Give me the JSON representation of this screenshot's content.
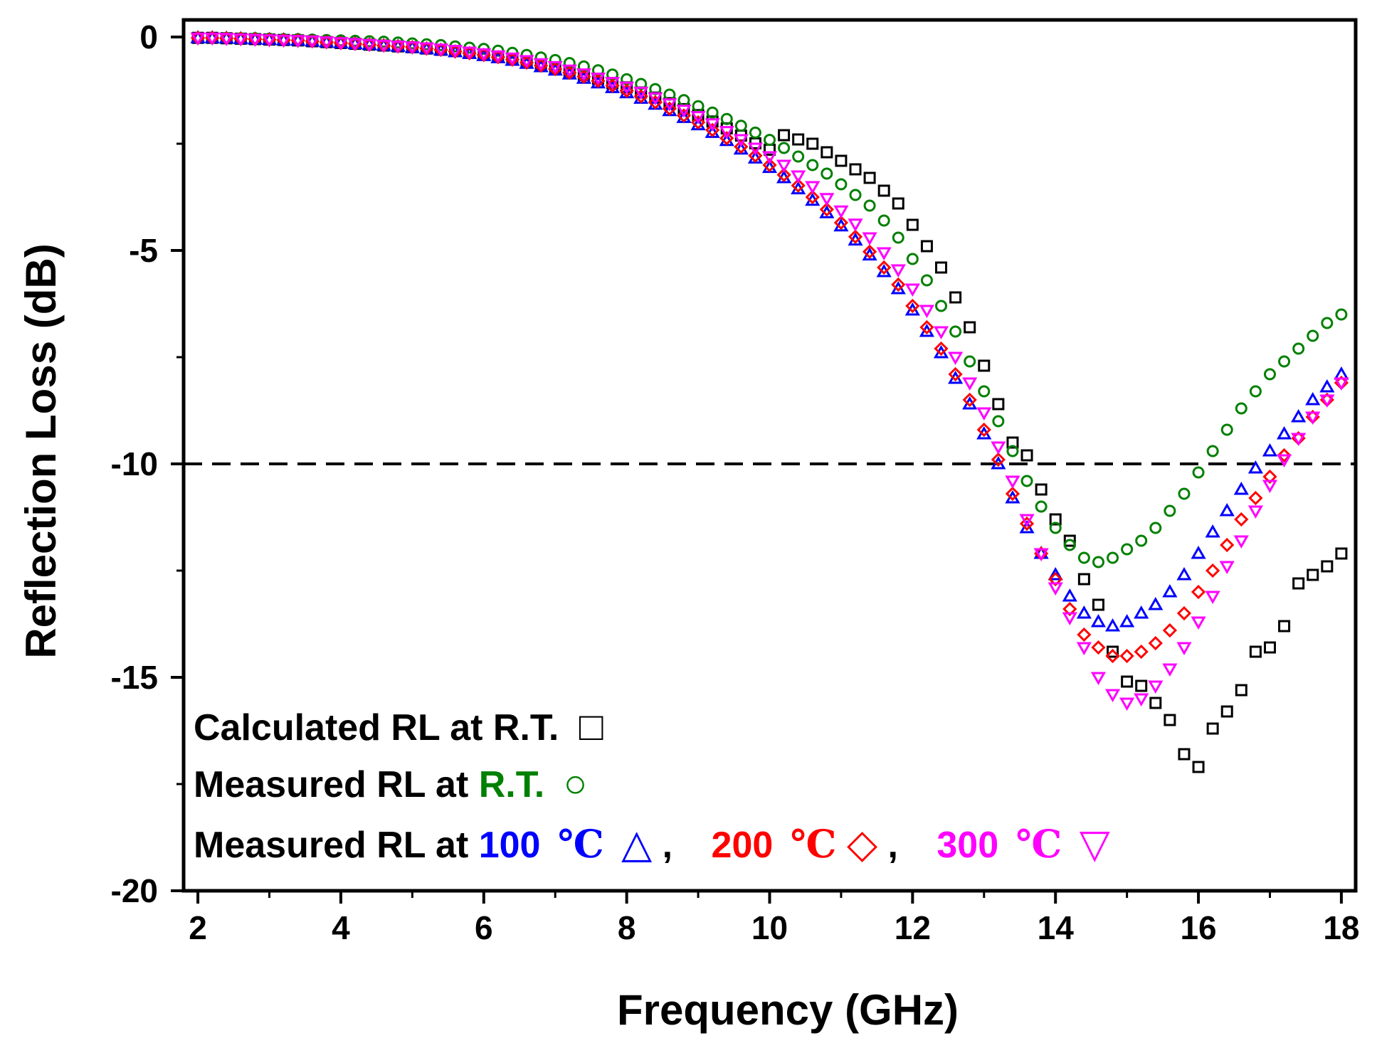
{
  "chart_data": {
    "type": "scatter",
    "title": "",
    "xlabel": "Frequency (GHz)",
    "ylabel": "Reflection Loss (dB)",
    "xlim": [
      1.8,
      18.2
    ],
    "ylim": [
      -20,
      0.4
    ],
    "xticks": [
      "2",
      "4",
      "6",
      "8",
      "10",
      "12",
      "14",
      "16",
      "18"
    ],
    "yticks": [
      "0",
      "-5",
      "-10",
      "-15",
      "-20"
    ],
    "reference_line": {
      "y": -10,
      "style": "dashed"
    },
    "x": [
      2.0,
      2.2,
      2.4,
      2.6,
      2.8,
      3.0,
      3.2,
      3.4,
      3.6,
      3.8,
      4.0,
      4.2,
      4.4,
      4.6,
      4.8,
      5.0,
      5.2,
      5.4,
      5.6,
      5.8,
      6.0,
      6.2,
      6.4,
      6.6,
      6.8,
      7.0,
      7.2,
      7.4,
      7.6,
      7.8,
      8.0,
      8.2,
      8.4,
      8.6,
      8.8,
      9.0,
      9.2,
      9.4,
      9.6,
      9.8,
      10.0,
      10.2,
      10.4,
      10.6,
      10.8,
      11.0,
      11.2,
      11.4,
      11.6,
      11.8,
      12.0,
      12.2,
      12.4,
      12.6,
      12.8,
      13.0,
      13.2,
      13.4,
      13.6,
      13.8,
      14.0,
      14.2,
      14.4,
      14.6,
      14.8,
      15.0,
      15.2,
      15.4,
      15.6,
      15.8,
      16.0,
      16.2,
      16.4,
      16.6,
      16.8,
      17.0,
      17.2,
      17.4,
      17.6,
      17.8,
      18.0
    ],
    "series": [
      {
        "name": "Calculated RL at R.T.",
        "marker": "square",
        "color": "#000000",
        "values": [
          -0.02,
          -0.02,
          -0.03,
          -0.04,
          -0.05,
          -0.06,
          -0.07,
          -0.08,
          -0.1,
          -0.12,
          -0.14,
          -0.16,
          -0.18,
          -0.2,
          -0.22,
          -0.24,
          -0.27,
          -0.3,
          -0.33,
          -0.37,
          -0.41,
          -0.46,
          -0.52,
          -0.58,
          -0.65,
          -0.72,
          -0.8,
          -0.89,
          -0.98,
          -1.08,
          -1.18,
          -1.3,
          -1.42,
          -1.55,
          -1.69,
          -1.83,
          -1.98,
          -2.14,
          -2.31,
          -2.49,
          -2.64,
          -2.3,
          -2.4,
          -2.5,
          -2.7,
          -2.9,
          -3.1,
          -3.3,
          -3.6,
          -3.9,
          -4.4,
          -4.9,
          -5.4,
          -6.1,
          -6.8,
          -7.7,
          -8.6,
          -9.5,
          -9.8,
          -10.6,
          -11.3,
          -11.8,
          -12.7,
          -13.3,
          -14.4,
          -15.1,
          -15.2,
          -15.6,
          -16.0,
          -16.8,
          -17.1,
          -16.2,
          -15.8,
          -15.3,
          -14.4,
          -14.3,
          -13.8,
          -12.8,
          -12.6,
          -12.4,
          -12.1
        ]
      },
      {
        "name": "Measured RL at R.T.",
        "marker": "circle",
        "color": "#008000",
        "values": [
          -0.02,
          -0.02,
          -0.02,
          -0.03,
          -0.03,
          -0.04,
          -0.05,
          -0.05,
          -0.06,
          -0.07,
          -0.08,
          -0.09,
          -0.1,
          -0.11,
          -0.13,
          -0.15,
          -0.17,
          -0.19,
          -0.22,
          -0.25,
          -0.28,
          -0.32,
          -0.37,
          -0.42,
          -0.48,
          -0.54,
          -0.61,
          -0.69,
          -0.78,
          -0.88,
          -0.99,
          -1.1,
          -1.22,
          -1.35,
          -1.48,
          -1.62,
          -1.77,
          -1.92,
          -2.08,
          -2.24,
          -2.41,
          -2.6,
          -2.8,
          -3.0,
          -3.2,
          -3.45,
          -3.7,
          -3.95,
          -4.3,
          -4.7,
          -5.2,
          -5.7,
          -6.3,
          -6.9,
          -7.6,
          -8.3,
          -9.0,
          -9.7,
          -10.4,
          -11.0,
          -11.5,
          -11.9,
          -12.2,
          -12.3,
          -12.2,
          -12.0,
          -11.8,
          -11.5,
          -11.1,
          -10.7,
          -10.2,
          -9.7,
          -9.2,
          -8.7,
          -8.3,
          -7.9,
          -7.6,
          -7.3,
          -7.0,
          -6.7,
          -6.5
        ]
      },
      {
        "name": "Measured RL at 100 ℃",
        "marker": "triangle",
        "color": "#0000ff",
        "values": [
          -0.02,
          -0.02,
          -0.03,
          -0.04,
          -0.05,
          -0.06,
          -0.07,
          -0.08,
          -0.1,
          -0.12,
          -0.14,
          -0.16,
          -0.18,
          -0.2,
          -0.22,
          -0.25,
          -0.28,
          -0.31,
          -0.35,
          -0.39,
          -0.44,
          -0.49,
          -0.55,
          -0.62,
          -0.7,
          -0.78,
          -0.87,
          -0.97,
          -1.08,
          -1.19,
          -1.31,
          -1.44,
          -1.58,
          -1.73,
          -1.89,
          -2.06,
          -2.24,
          -2.43,
          -2.63,
          -2.84,
          -3.06,
          -3.3,
          -3.56,
          -3.83,
          -4.12,
          -4.43,
          -4.76,
          -5.11,
          -5.5,
          -5.9,
          -6.4,
          -6.9,
          -7.4,
          -8.0,
          -8.6,
          -9.3,
          -10.0,
          -10.8,
          -11.5,
          -12.1,
          -12.6,
          -13.1,
          -13.5,
          -13.7,
          -13.8,
          -13.7,
          -13.5,
          -13.3,
          -13.0,
          -12.6,
          -12.1,
          -11.6,
          -11.1,
          -10.6,
          -10.1,
          -9.7,
          -9.3,
          -8.9,
          -8.5,
          -8.2,
          -7.9
        ]
      },
      {
        "name": "Measured RL at 200 ℃",
        "marker": "diamond",
        "color": "#ff0000",
        "values": [
          -0.02,
          -0.02,
          -0.03,
          -0.04,
          -0.05,
          -0.06,
          -0.07,
          -0.08,
          -0.1,
          -0.12,
          -0.14,
          -0.16,
          -0.18,
          -0.2,
          -0.22,
          -0.24,
          -0.27,
          -0.3,
          -0.34,
          -0.38,
          -0.42,
          -0.47,
          -0.53,
          -0.6,
          -0.67,
          -0.75,
          -0.84,
          -0.93,
          -1.03,
          -1.14,
          -1.26,
          -1.39,
          -1.53,
          -1.68,
          -1.84,
          -2.0,
          -2.18,
          -2.37,
          -2.57,
          -2.78,
          -3.0,
          -3.23,
          -3.48,
          -3.75,
          -4.04,
          -4.35,
          -4.68,
          -5.03,
          -5.4,
          -5.8,
          -6.3,
          -6.8,
          -7.3,
          -7.9,
          -8.5,
          -9.2,
          -9.9,
          -10.7,
          -11.4,
          -12.1,
          -12.7,
          -13.4,
          -14.0,
          -14.3,
          -14.5,
          -14.5,
          -14.4,
          -14.2,
          -13.9,
          -13.5,
          -13.0,
          -12.5,
          -11.9,
          -11.3,
          -10.8,
          -10.3,
          -9.8,
          -9.4,
          -8.9,
          -8.5,
          -8.1
        ]
      },
      {
        "name": "Measured RL at 300 ℃",
        "marker": "inverted-triangle",
        "color": "#ff00ff",
        "values": [
          -0.02,
          -0.02,
          -0.03,
          -0.04,
          -0.05,
          -0.06,
          -0.07,
          -0.08,
          -0.09,
          -0.11,
          -0.13,
          -0.15,
          -0.17,
          -0.19,
          -0.21,
          -0.23,
          -0.25,
          -0.28,
          -0.31,
          -0.35,
          -0.39,
          -0.44,
          -0.49,
          -0.55,
          -0.62,
          -0.69,
          -0.77,
          -0.86,
          -0.96,
          -1.06,
          -1.17,
          -1.29,
          -1.42,
          -1.56,
          -1.71,
          -1.86,
          -2.03,
          -2.21,
          -2.4,
          -2.6,
          -2.8,
          -3.0,
          -3.25,
          -3.5,
          -3.78,
          -4.07,
          -4.38,
          -4.7,
          -5.05,
          -5.45,
          -5.9,
          -6.4,
          -6.9,
          -7.5,
          -8.1,
          -8.8,
          -9.6,
          -10.4,
          -11.3,
          -12.1,
          -12.9,
          -13.6,
          -14.3,
          -15.0,
          -15.4,
          -15.6,
          -15.5,
          -15.2,
          -14.8,
          -14.3,
          -13.7,
          -13.1,
          -12.4,
          -11.8,
          -11.1,
          -10.5,
          -9.9,
          -9.4,
          -8.9,
          -8.5,
          -8.1
        ]
      }
    ],
    "legend": {
      "position": "bottom-left",
      "line1": {
        "text": "Calculated RL at R.T.",
        "symbol": "□"
      },
      "line2": {
        "prefix": "Measured RL at ",
        "highlight": "R.T.",
        "symbol": "○"
      },
      "line3": {
        "prefix": "Measured RL at ",
        "t1_num": "100",
        "t1_unit": "℃",
        "t1_symbol": "△",
        "sep1": ",",
        "t2_num": "200",
        "t2_unit": "℃",
        "t2_symbol": "◇",
        "sep2": ",",
        "t3_num": "300",
        "t3_unit": "℃",
        "t3_symbol": "▽"
      }
    }
  }
}
